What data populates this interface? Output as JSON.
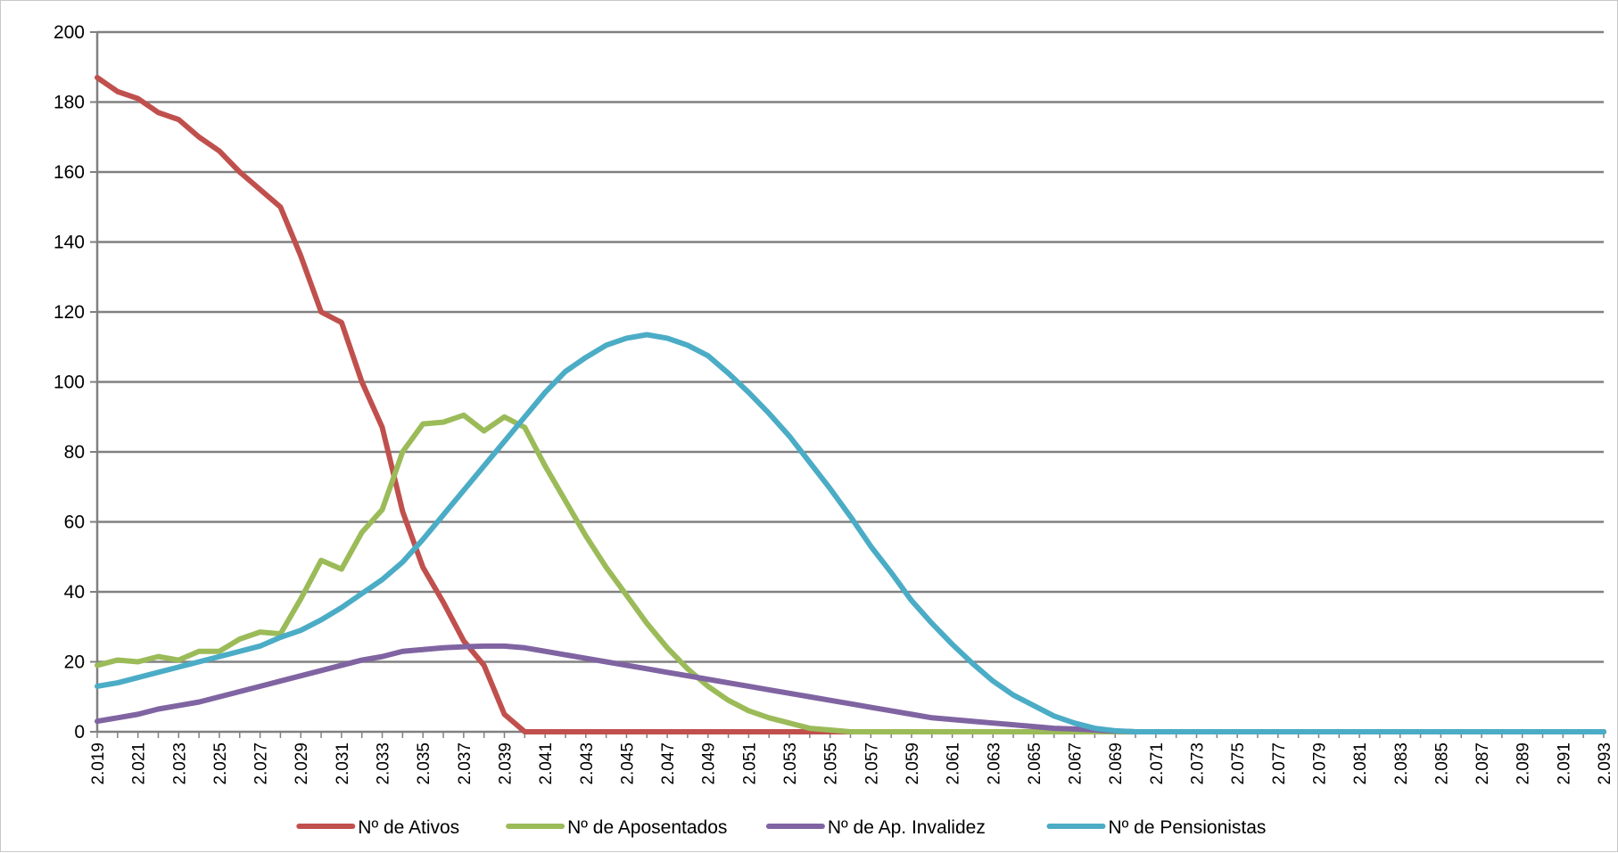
{
  "chart_data": {
    "type": "line",
    "title": "",
    "xlabel": "",
    "ylabel": "",
    "ylim": [
      0,
      200
    ],
    "y_ticks": [
      0,
      20,
      40,
      60,
      80,
      100,
      120,
      140,
      160,
      180,
      200
    ],
    "grid": "horizontal",
    "legend_position": "bottom",
    "x": [
      "2.019",
      "2.020",
      "2.021",
      "2.022",
      "2.023",
      "2.024",
      "2.025",
      "2.026",
      "2.027",
      "2.028",
      "2.029",
      "2.030",
      "2.031",
      "2.032",
      "2.033",
      "2.034",
      "2.035",
      "2.036",
      "2.037",
      "2.038",
      "2.039",
      "2.040",
      "2.041",
      "2.042",
      "2.043",
      "2.044",
      "2.045",
      "2.046",
      "2.047",
      "2.048",
      "2.049",
      "2.050",
      "2.051",
      "2.052",
      "2.053",
      "2.054",
      "2.055",
      "2.056",
      "2.057",
      "2.058",
      "2.059",
      "2.060",
      "2.061",
      "2.062",
      "2.063",
      "2.064",
      "2.065",
      "2.066",
      "2.067",
      "2.068",
      "2.069",
      "2.070",
      "2.071",
      "2.072",
      "2.073",
      "2.074",
      "2.075",
      "2.076",
      "2.077",
      "2.078",
      "2.079",
      "2.080",
      "2.081",
      "2.082",
      "2.083",
      "2.084",
      "2.085",
      "2.086",
      "2.087",
      "2.088",
      "2.089",
      "2.090",
      "2.091",
      "2.092",
      "2.093"
    ],
    "x_tick_labels": [
      "2.019",
      "2.021",
      "2.023",
      "2.025",
      "2.027",
      "2.029",
      "2.031",
      "2.033",
      "2.035",
      "2.037",
      "2.039",
      "2.041",
      "2.043",
      "2.045",
      "2.047",
      "2.049",
      "2.051",
      "2.053",
      "2.055",
      "2.057",
      "2.059",
      "2.061",
      "2.063",
      "2.065",
      "2.067",
      "2.069",
      "2.071",
      "2.073",
      "2.075",
      "2.077",
      "2.079",
      "2.081",
      "2.083",
      "2.085",
      "2.087",
      "2.089",
      "2.091",
      "2.093"
    ],
    "series": [
      {
        "name": "Nº de Ativos",
        "color": "#c0504d",
        "values": [
          187,
          183,
          181,
          177,
          175,
          170,
          166,
          160,
          155,
          150,
          136,
          120,
          117,
          100,
          87,
          63,
          47,
          37,
          26,
          19,
          5,
          0,
          0,
          0,
          0,
          0,
          0,
          0,
          0,
          0,
          0,
          0,
          0,
          0,
          0,
          0,
          0,
          0,
          0,
          0,
          0,
          0,
          0,
          0,
          0,
          0,
          0,
          0,
          0,
          0,
          0,
          0,
          0,
          0,
          0,
          0,
          0,
          0,
          0,
          0,
          0,
          0,
          0,
          0,
          0,
          0,
          0,
          0,
          0,
          0,
          0,
          0,
          0,
          0,
          0
        ]
      },
      {
        "name": "Nº de Aposentados",
        "color": "#9bbb59",
        "values": [
          19,
          20.5,
          20,
          21.5,
          20.5,
          23,
          23,
          26.5,
          28.5,
          28,
          38,
          49,
          46.5,
          57,
          63.5,
          80,
          88,
          88.5,
          90.5,
          86,
          90,
          87,
          76,
          66,
          56,
          47,
          39,
          31,
          24,
          18,
          13,
          9,
          6,
          4,
          2.5,
          1,
          0.5,
          0,
          0,
          0,
          0,
          0,
          0,
          0,
          0,
          0,
          0,
          0,
          0,
          0,
          0,
          0,
          0,
          0,
          0,
          0,
          0,
          0,
          0,
          0,
          0,
          0,
          0,
          0,
          0,
          0,
          0,
          0,
          0,
          0,
          0,
          0,
          0,
          0,
          0
        ]
      },
      {
        "name": "Nº de Ap. Invalidez",
        "color": "#8064a2",
        "values": [
          3,
          4,
          5,
          6.5,
          7.5,
          8.5,
          10,
          11.5,
          13,
          14.5,
          16,
          17.5,
          19,
          20.5,
          21.5,
          23,
          23.5,
          24,
          24.3,
          24.5,
          24.5,
          24,
          23,
          22,
          21,
          20,
          19,
          18,
          17,
          16,
          15,
          14,
          13,
          12,
          11,
          10,
          9,
          8,
          7,
          6,
          5,
          4,
          3.5,
          3,
          2.5,
          2,
          1.5,
          1,
          0.8,
          0.5,
          0.2,
          0,
          0,
          0,
          0,
          0,
          0,
          0,
          0,
          0,
          0,
          0,
          0,
          0,
          0,
          0,
          0,
          0,
          0,
          0,
          0,
          0,
          0,
          0,
          0
        ]
      },
      {
        "name": "Nº de Pensionistas",
        "color": "#4bacc6",
        "values": [
          13,
          14,
          15.5,
          17,
          18.5,
          20,
          21.5,
          23,
          24.5,
          27,
          29,
          32,
          35.5,
          39.5,
          43.5,
          48.5,
          55,
          62,
          69,
          76,
          83,
          90,
          97,
          103,
          107,
          110.5,
          112.5,
          113.5,
          112.5,
          110.5,
          107.5,
          102.5,
          97,
          91,
          84.5,
          77,
          69.5,
          61.5,
          53,
          45.5,
          37.5,
          31,
          25,
          19.5,
          14.5,
          10.5,
          7.5,
          4.5,
          2.5,
          1,
          0.3,
          0,
          0,
          0,
          0,
          0,
          0,
          0,
          0,
          0,
          0,
          0,
          0,
          0,
          0,
          0,
          0,
          0,
          0,
          0,
          0,
          0,
          0,
          0,
          0
        ]
      }
    ]
  }
}
